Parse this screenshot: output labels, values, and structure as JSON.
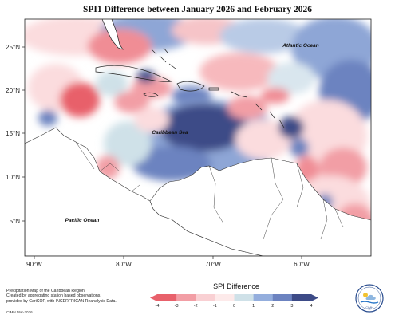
{
  "title": "SPI1 Difference between January 2026 and February 2026",
  "x_ticks": [
    "90°W",
    "80°W",
    "70°W",
    "60°W"
  ],
  "y_ticks": [
    "25°N",
    "20°N",
    "15°N",
    "10°N",
    "5°N"
  ],
  "place_labels": {
    "atlantic": "Atlantic Ocean",
    "caribbean": "Caribbean Sea",
    "pacific": "Pacific Ocean"
  },
  "legend": {
    "title": "SPI Difference",
    "ticks": [
      "-4",
      "-3",
      "-2",
      "-1",
      "0",
      "1",
      "2",
      "3",
      "4"
    ],
    "colors": [
      "#e8616b",
      "#f29ea5",
      "#f9d0d3",
      "#fdeaea",
      "#cfe1e8",
      "#94aedd",
      "#6c83c0",
      "#3d4b87"
    ]
  },
  "note_lines": [
    "Precipitation Map of the Caribbean Region.",
    "Created by aggregating station based observations,",
    "provided by CariCOF, with INCERFRICAN Reanalysis Data."
  ],
  "credit": "CIMH Mar-2026",
  "logo_text": "CIMH"
}
